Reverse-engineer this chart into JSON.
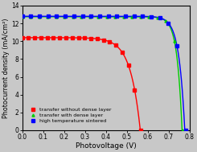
{
  "title": "",
  "xlabel": "Photovoltage (V)",
  "ylabel": "Photocurrent density (mA/cm²)",
  "xlim": [
    0.0,
    0.8
  ],
  "ylim": [
    0.0,
    14.0
  ],
  "yticks": [
    0,
    2,
    4,
    6,
    8,
    10,
    12,
    14
  ],
  "xticks": [
    0.0,
    0.1,
    0.2,
    0.3,
    0.4,
    0.5,
    0.6,
    0.7,
    0.8
  ],
  "legend": [
    "transfer without dense layer",
    "transfer with dense layer",
    "high temperature sintered"
  ],
  "colors": [
    "red",
    "#00cc00",
    "blue"
  ],
  "markers": [
    "s",
    "^",
    "s"
  ],
  "red_jsc": 10.4,
  "red_voc": 0.565,
  "red_sharpness": 12,
  "green_jsc": 12.75,
  "green_voc": 0.765,
  "green_sharpness": 32,
  "blue_jsc": 12.8,
  "blue_voc": 0.778,
  "blue_sharpness": 28,
  "n_markers": 20,
  "background": "#c8c8c8",
  "linewidth": 1.0,
  "markersize": 2.2,
  "xlabel_fontsize": 6.5,
  "ylabel_fontsize": 5.8,
  "tick_fontsize": 5.5,
  "legend_fontsize": 4.5
}
